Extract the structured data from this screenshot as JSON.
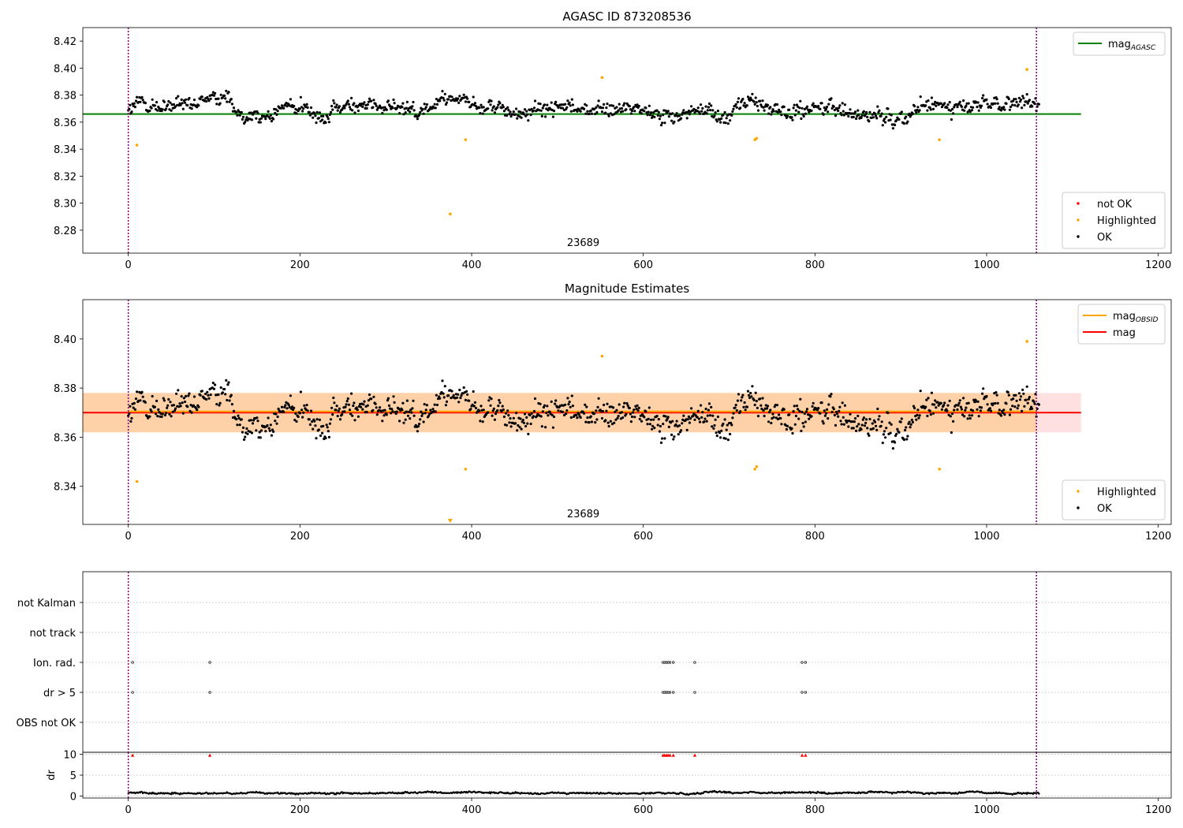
{
  "chart_data": [
    {
      "type": "scatter",
      "title": "AGASC ID 873208536",
      "annotation": "23689",
      "xlim": [
        -53,
        1215
      ],
      "ylim": [
        8.263,
        8.43
      ],
      "xticks": [
        0,
        200,
        400,
        600,
        800,
        1000,
        1200
      ],
      "yticks": [
        8.28,
        8.3,
        8.32,
        8.34,
        8.36,
        8.38,
        8.4,
        8.42
      ],
      "ytick_decimals": 2,
      "grid": false,
      "vlines": [
        0,
        1058
      ],
      "hlines": [
        {
          "y": 8.366,
          "x": [
            -53,
            1110
          ],
          "color": "#008000",
          "label": "mag_AGASC"
        }
      ],
      "highlighted": [
        [
          10,
          8.343
        ],
        [
          375,
          8.292
        ],
        [
          393,
          8.347
        ],
        [
          552,
          8.393
        ],
        [
          730,
          8.347
        ],
        [
          732,
          8.348
        ],
        [
          945,
          8.347
        ],
        [
          1047,
          8.399
        ]
      ],
      "not_ok": [],
      "series_model": {
        "n": 1062,
        "center": 8.37,
        "noise": 0.006
      },
      "legends": [
        {
          "position": "top-right",
          "entries": [
            {
              "kind": "line",
              "color": "#008000",
              "label": "mag",
              "sub": "AGASC"
            }
          ]
        },
        {
          "position": "bottom-right",
          "entries": [
            {
              "kind": "dot",
              "color": "#ff0000",
              "label": "not OK"
            },
            {
              "kind": "dot",
              "color": "#ffa500",
              "label": "Highlighted"
            },
            {
              "kind": "dot",
              "color": "#000000",
              "label": "OK"
            }
          ]
        }
      ]
    },
    {
      "type": "scatter",
      "title": "Magnitude Estimates",
      "annotation": "23689",
      "xlim": [
        -53,
        1215
      ],
      "ylim": [
        8.3245,
        8.416
      ],
      "xticks": [
        0,
        200,
        400,
        600,
        800,
        1000,
        1200
      ],
      "yticks": [
        8.34,
        8.36,
        8.38,
        8.4
      ],
      "ytick_decimals": 2,
      "grid": false,
      "vlines": [
        0,
        1058
      ],
      "bands": [
        {
          "y": [
            8.362,
            8.378
          ],
          "x": [
            -53,
            1110
          ],
          "color": "#ff0000",
          "opacity": 0.12
        },
        {
          "y": [
            8.362,
            8.378
          ],
          "x": [
            -53,
            1058
          ],
          "color": "#ffa500",
          "opacity": 0.25
        }
      ],
      "hlines": [
        {
          "y": 8.37,
          "x": [
            -53,
            1110
          ],
          "color": "#ff0000",
          "label": "mag"
        },
        {
          "y": 8.3705,
          "x": [
            0,
            1058
          ],
          "color": "#ffa500",
          "label": "mag_OBSID"
        }
      ],
      "highlighted": [
        [
          10,
          8.342
        ],
        [
          393,
          8.347
        ],
        [
          552,
          8.393
        ],
        [
          730,
          8.347
        ],
        [
          732,
          8.348
        ],
        [
          945,
          8.347
        ],
        [
          1047,
          8.399
        ]
      ],
      "clipped": [
        [
          375,
          8.325
        ]
      ],
      "series_model": {
        "n": 1062,
        "center": 8.37,
        "noise": 0.006
      },
      "legends": [
        {
          "position": "top-right",
          "entries": [
            {
              "kind": "line",
              "color": "#ffa500",
              "label": "mag",
              "sub": "OBSID"
            },
            {
              "kind": "line",
              "color": "#ff0000",
              "label": "mag"
            }
          ]
        },
        {
          "position": "bottom-right",
          "entries": [
            {
              "kind": "dot",
              "color": "#ffa500",
              "label": "Highlighted"
            },
            {
              "kind": "dot",
              "color": "#000000",
              "label": "OK"
            }
          ]
        }
      ]
    },
    {
      "type": "scatter",
      "title": "",
      "xlim": [
        -53,
        1215
      ],
      "xticks": [
        0,
        200,
        400,
        600,
        800,
        1000,
        1200
      ],
      "categories": [
        "not Kalman",
        "not track",
        "Ion. rad.",
        "dr > 5",
        "OBS not OK"
      ],
      "vlines": [
        0,
        1058
      ],
      "flags": {
        "not Kalman": [],
        "not track": [],
        "Ion. rad.": [
          5,
          95,
          623,
          625,
          627,
          629,
          631,
          635,
          660,
          785,
          789
        ],
        "dr > 5": [
          5,
          95,
          623,
          625,
          627,
          629,
          631,
          635,
          660,
          785,
          789
        ],
        "OBS not OK": []
      }
    },
    {
      "type": "scatter",
      "title": "",
      "ylabel": "dr",
      "xlim": [
        -53,
        1215
      ],
      "ylim": [
        -0.5,
        10.5
      ],
      "xticks": [
        0,
        200,
        400,
        600,
        800,
        1000,
        1200
      ],
      "yticks": [
        0,
        5,
        10
      ],
      "vlines": [
        0,
        1058
      ],
      "clipped": [
        5,
        95,
        623,
        625,
        627,
        629,
        631,
        635,
        660,
        785,
        789
      ],
      "dr_model": {
        "n": 1062,
        "center": 0.7,
        "noise": 0.2
      }
    }
  ]
}
